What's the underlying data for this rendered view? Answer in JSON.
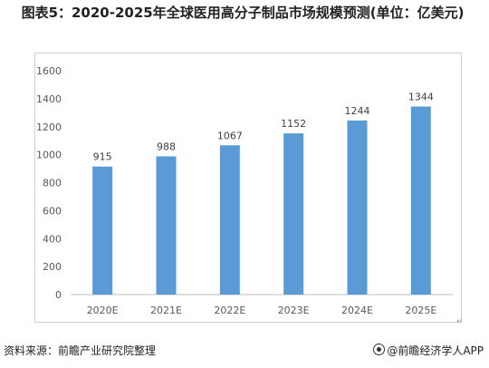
{
  "title": "图表5：2020-2025年全球医用高分子制品市场规模预测(单位：亿美元)",
  "footer": {
    "source": "资料来源：前瞻产业研究院整理",
    "brand": "@前瞻经济学人APP"
  },
  "colors": {
    "bar": "#5b9bd5",
    "axis": "#bfbfbf",
    "text": "#595959"
  },
  "chart_data": {
    "type": "bar",
    "categories": [
      "2020E",
      "2021E",
      "2022E",
      "2023E",
      "2024E",
      "2025E"
    ],
    "values": [
      915,
      988,
      1067,
      1152,
      1244,
      1344
    ],
    "ylim": [
      0,
      1600
    ],
    "yticks": [
      0,
      200,
      400,
      600,
      800,
      1000,
      1200,
      1400,
      1600
    ],
    "grid": false,
    "legend": "none"
  }
}
